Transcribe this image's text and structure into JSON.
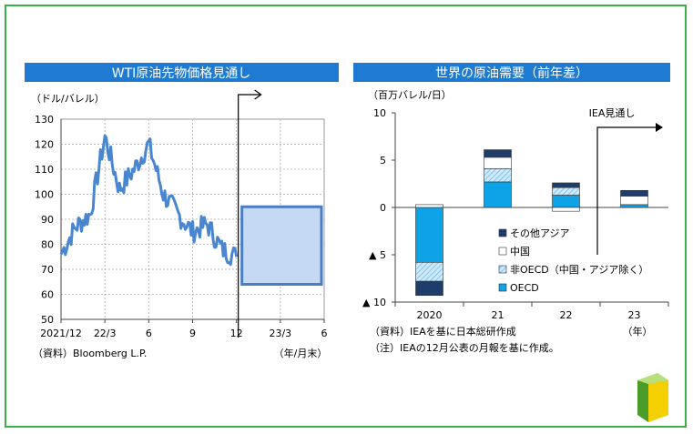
{
  "chart_data": [
    {
      "type": "line",
      "title": "WTI原油先物価格見通し",
      "ylabel": "（ドル/バレル）",
      "xunit": "（年/月末）",
      "source": "（資料）Bloomberg L.P.",
      "ylim": [
        50,
        130
      ],
      "yticks": [
        50,
        60,
        70,
        80,
        90,
        100,
        110,
        120,
        130
      ],
      "xticks": [
        "2021/12",
        "22/3",
        "6",
        "9",
        "12",
        "23/3",
        "6"
      ],
      "grid": true,
      "series": [
        {
          "x": [
            "2021-12",
            "2022-01",
            "2022-02",
            "2022-03",
            "2022-04",
            "2022-05",
            "2022-06",
            "2022-07",
            "2022-08",
            "2022-09",
            "2022-10",
            "2022-11",
            "2022-12"
          ],
          "values": [
            76,
            87,
            92,
            123,
            102,
            110,
            120,
            100,
            92,
            85,
            88,
            78,
            75
          ]
        }
      ],
      "forecast_range": {
        "x_from": "2022-12",
        "x_to": "2023-06",
        "low": 64,
        "high": 95
      },
      "colors": {
        "line": "#4a86d0",
        "box_fill": "#c6d9f4",
        "box_stroke": "#4a7cc4",
        "title_bg": "#1f7bd1"
      }
    },
    {
      "type": "bar",
      "stacked": true,
      "title": "世界の原油需要（前年差）",
      "ylabel": "（百万バレル/日）",
      "xunit": "（年）",
      "ylim": [
        -10,
        10
      ],
      "yticks": [
        "10",
        "5",
        "0",
        "▲ 5",
        "▲ 10"
      ],
      "categories": [
        "2020",
        "21",
        "22",
        "23"
      ],
      "series": [
        {
          "name": "OECD",
          "values": [
            -5.8,
            2.7,
            1.3,
            0.3
          ]
        },
        {
          "name": "非OECD（中国・アジア除く）",
          "values": [
            -2.0,
            1.4,
            0.8,
            0.0
          ]
        },
        {
          "name": "中国",
          "values": [
            0.3,
            1.2,
            -0.4,
            0.9
          ]
        },
        {
          "name": "その他アジア",
          "values": [
            -1.5,
            0.8,
            0.5,
            0.6
          ]
        }
      ],
      "forecast_label": "IEA見通し",
      "source": "（資料）IEAを基に日本総研作成",
      "note": "（注）IEAの12月公表の月報を基に作成。",
      "colors": {
        "OECD": "#0ea3e6",
        "非OECD（中国・アジア除く）": "#9fd6f5",
        "中国": "#ffffff",
        "その他アジア": "#1f3d6b",
        "title_bg": "#1f7bd1"
      }
    }
  ]
}
